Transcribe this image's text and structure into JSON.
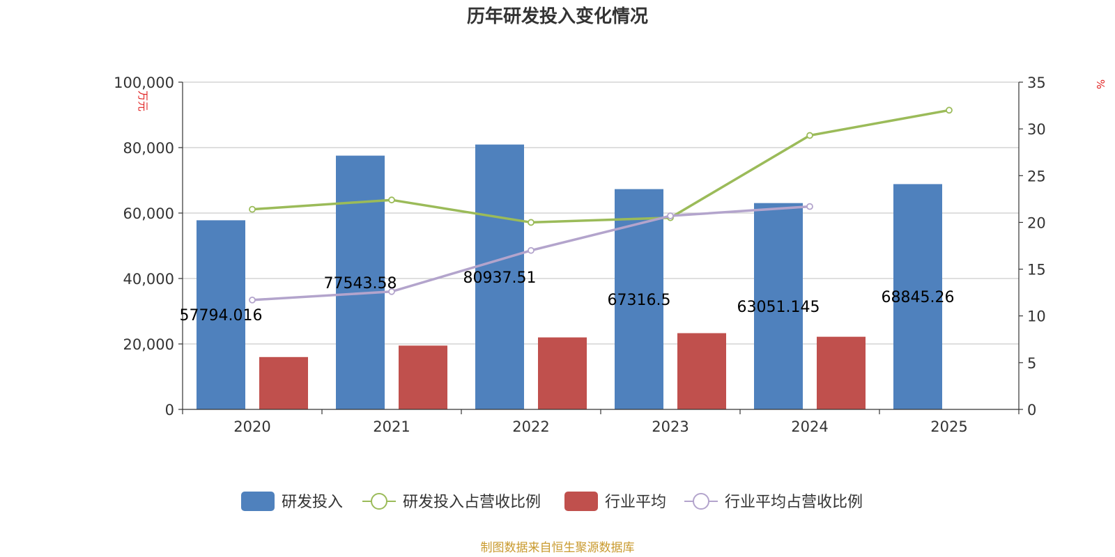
{
  "chart_data": {
    "type": "bar",
    "title": "历年研发投入变化情况",
    "categories": [
      "2020",
      "2021",
      "2022",
      "2023",
      "2024",
      "2025"
    ],
    "left_axis": {
      "unit": "万元",
      "ylim": [
        0,
        100000
      ],
      "ticks": [
        "0",
        "20,000",
        "40,000",
        "60,000",
        "80,000",
        "100,000"
      ],
      "tick_values": [
        0,
        20000,
        40000,
        60000,
        80000,
        100000
      ]
    },
    "right_axis": {
      "unit": "%",
      "ylim": [
        0,
        35
      ],
      "ticks": [
        "0",
        "5",
        "10",
        "15",
        "20",
        "25",
        "30",
        "35"
      ],
      "tick_values": [
        0,
        5,
        10,
        15,
        20,
        25,
        30,
        35
      ]
    },
    "series": [
      {
        "name": "研发投入",
        "type": "bar",
        "axis": "left",
        "color": "#4f81bd",
        "values": [
          57794.016,
          77543.58,
          80937.51,
          67316.5,
          63051.145,
          68845.26
        ],
        "labels": [
          "57794.016",
          "77543.58",
          "80937.51",
          "67316.5",
          "63051.145",
          "68845.26"
        ]
      },
      {
        "name": "研发投入占营收比例",
        "type": "line",
        "axis": "right",
        "color": "#9bbb59",
        "values": [
          21.4,
          22.4,
          20.0,
          20.5,
          29.3,
          32.0
        ]
      },
      {
        "name": "行业平均",
        "type": "bar",
        "axis": "left",
        "color": "#c0504d",
        "values": [
          16000,
          19500,
          22000,
          23300,
          22200,
          null
        ]
      },
      {
        "name": "行业平均占营收比例",
        "type": "line",
        "axis": "right",
        "color": "#b3a4cc",
        "values": [
          11.7,
          12.6,
          17.0,
          20.7,
          21.7,
          null
        ]
      }
    ],
    "legend_position": "bottom-center",
    "source": "制图数据来自恒生聚源数据库"
  }
}
